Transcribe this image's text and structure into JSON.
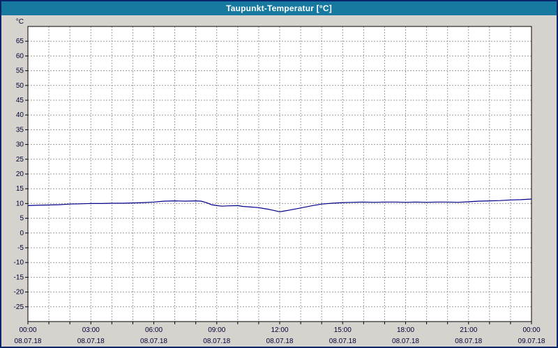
{
  "window": {
    "title": "Taupunkt-Temperatur [°C]"
  },
  "colors": {
    "titlebar_bg": "#17799f",
    "titlebar_text": "#ffffff",
    "page_bg": "#d6d3ce",
    "outer_border": "#0a246a",
    "plot_bg": "#ffffff",
    "plot_border": "#000000",
    "grid": "#9b9b9b",
    "tick": "#000000",
    "label": "#000033",
    "line": "#00008b"
  },
  "chart_data": {
    "type": "line",
    "title": "Taupunkt-Temperatur [°C]",
    "xlabel": "",
    "ylabel": "°C",
    "ylim": [
      -30,
      70
    ],
    "xlim_hours": [
      0,
      24
    ],
    "grid": true,
    "legend_position": "none",
    "y_ticks": [
      65,
      60,
      55,
      50,
      45,
      40,
      35,
      30,
      25,
      20,
      15,
      10,
      5,
      0,
      -5,
      -10,
      -15,
      -20,
      -25
    ],
    "x_grid_every_hours": 1,
    "x_ticks_hours": [
      0,
      3,
      6,
      9,
      12,
      15,
      18,
      21,
      24
    ],
    "x_tick_labels": [
      "00:00",
      "03:00",
      "06:00",
      "09:00",
      "12:00",
      "15:00",
      "18:00",
      "21:00",
      "00:00"
    ],
    "x_date_labels": [
      "08.07.18",
      "08.07.18",
      "08.07.18",
      "08.07.18",
      "08.07.18",
      "08.07.18",
      "08.07.18",
      "08.07.18",
      "09.07.18"
    ],
    "series": [
      {
        "name": "Taupunkt-Temperatur",
        "x": [
          0,
          0.5,
          1,
          1.5,
          2,
          2.5,
          3,
          3.5,
          4,
          4.5,
          5,
          5.5,
          6,
          6.5,
          7,
          7.5,
          8,
          8.25,
          8.5,
          8.75,
          9,
          9.25,
          9.5,
          10,
          10.25,
          10.5,
          11,
          11.25,
          11.5,
          11.75,
          12,
          12.25,
          12.5,
          13,
          13.5,
          14,
          14.5,
          15,
          15.5,
          16,
          16.5,
          17,
          17.5,
          18,
          18.5,
          19,
          19.5,
          20,
          20.5,
          21,
          21.5,
          22,
          22.5,
          23,
          23.5,
          24
        ],
        "values": [
          9.3,
          9.4,
          9.5,
          9.6,
          9.8,
          9.9,
          10.0,
          10.0,
          10.1,
          10.1,
          10.2,
          10.3,
          10.5,
          10.8,
          10.9,
          10.8,
          10.9,
          10.8,
          10.3,
          9.6,
          9.3,
          9.1,
          9.2,
          9.3,
          9.0,
          8.9,
          8.6,
          8.3,
          8.0,
          7.6,
          7.2,
          7.5,
          7.8,
          8.5,
          9.2,
          9.8,
          10.1,
          10.3,
          10.4,
          10.5,
          10.4,
          10.5,
          10.5,
          10.4,
          10.5,
          10.4,
          10.5,
          10.5,
          10.4,
          10.6,
          10.8,
          10.9,
          11.0,
          11.2,
          11.3,
          11.5
        ]
      }
    ]
  }
}
